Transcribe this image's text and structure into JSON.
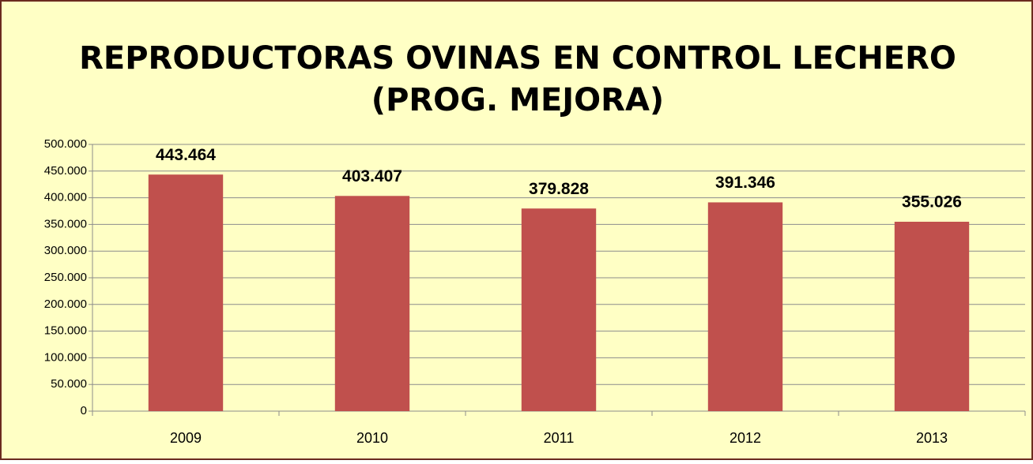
{
  "chart_data": {
    "type": "bar",
    "title": [
      "REPRODUCTORAS OVINAS EN CONTROL LECHERO",
      "(PROG. MEJORA)"
    ],
    "categories": [
      "2009",
      "2010",
      "2011",
      "2012",
      "2013"
    ],
    "values": [
      443464,
      403407,
      379828,
      391346,
      355026
    ],
    "value_labels": [
      "443.464",
      "403.407",
      "379.828",
      "391.346",
      "355.026"
    ],
    "color": "#c0504d",
    "ylim": [
      0,
      500000
    ],
    "yticks": [
      0,
      {
        "value": 50000,
        "label": "50.000"
      },
      {
        "value": 100000,
        "label": "100.000"
      },
      {
        "value": 150000,
        "label": "150.000"
      },
      {
        "value": 200000,
        "label": "200.000"
      },
      {
        "value": 250000,
        "label": "250.000"
      },
      {
        "value": 300000,
        "label": "300.000"
      },
      {
        "value": 350000,
        "label": "350.000"
      },
      {
        "value": 400000,
        "label": "400.000"
      },
      {
        "value": 450000,
        "label": "450.000"
      },
      {
        "value": 500000,
        "label": "500.000"
      }
    ],
    "grid": true
  }
}
